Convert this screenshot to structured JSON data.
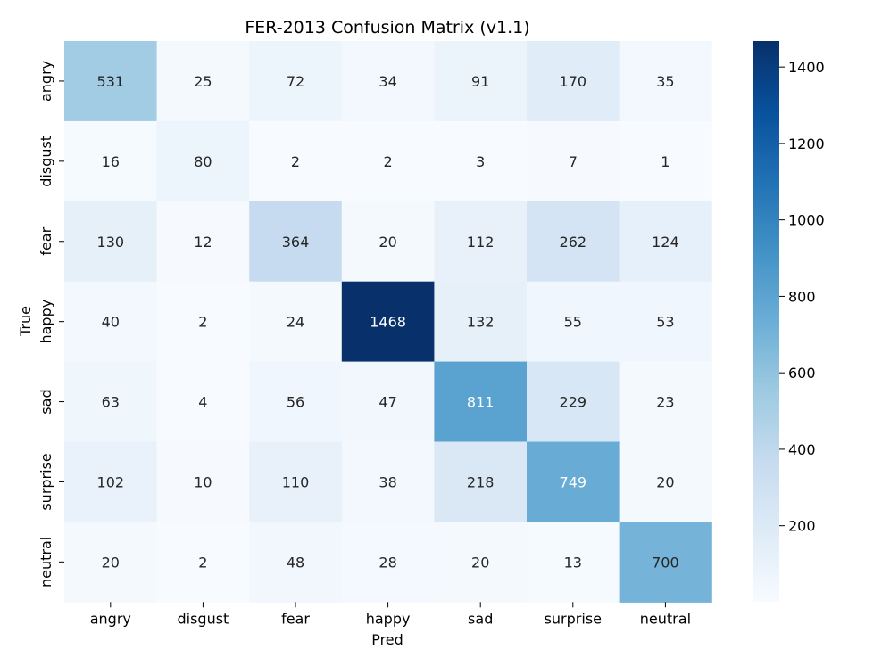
{
  "chart_data": {
    "type": "heatmap",
    "title": "FER-2013 Confusion Matrix (v1.1)",
    "xlabel": "Pred",
    "ylabel": "True",
    "x_categories": [
      "angry",
      "disgust",
      "fear",
      "happy",
      "sad",
      "surprise",
      "neutral"
    ],
    "y_categories": [
      "angry",
      "disgust",
      "fear",
      "happy",
      "sad",
      "surprise",
      "neutral"
    ],
    "values": [
      [
        531,
        25,
        72,
        34,
        91,
        170,
        35
      ],
      [
        16,
        80,
        2,
        2,
        3,
        7,
        1
      ],
      [
        130,
        12,
        364,
        20,
        112,
        262,
        124
      ],
      [
        40,
        2,
        24,
        1468,
        132,
        55,
        53
      ],
      [
        63,
        4,
        56,
        47,
        811,
        229,
        23
      ],
      [
        102,
        10,
        110,
        38,
        218,
        749,
        20
      ],
      [
        20,
        2,
        48,
        28,
        20,
        13,
        700
      ]
    ],
    "colormap": "Blues",
    "value_range": [
      1,
      1468
    ],
    "colorbar": {
      "ticks": [
        200,
        400,
        600,
        800,
        1000,
        1200,
        1400
      ],
      "tick_labels": [
        "200",
        "400",
        "600",
        "800",
        "1000",
        "1200",
        "1400"
      ]
    }
  }
}
